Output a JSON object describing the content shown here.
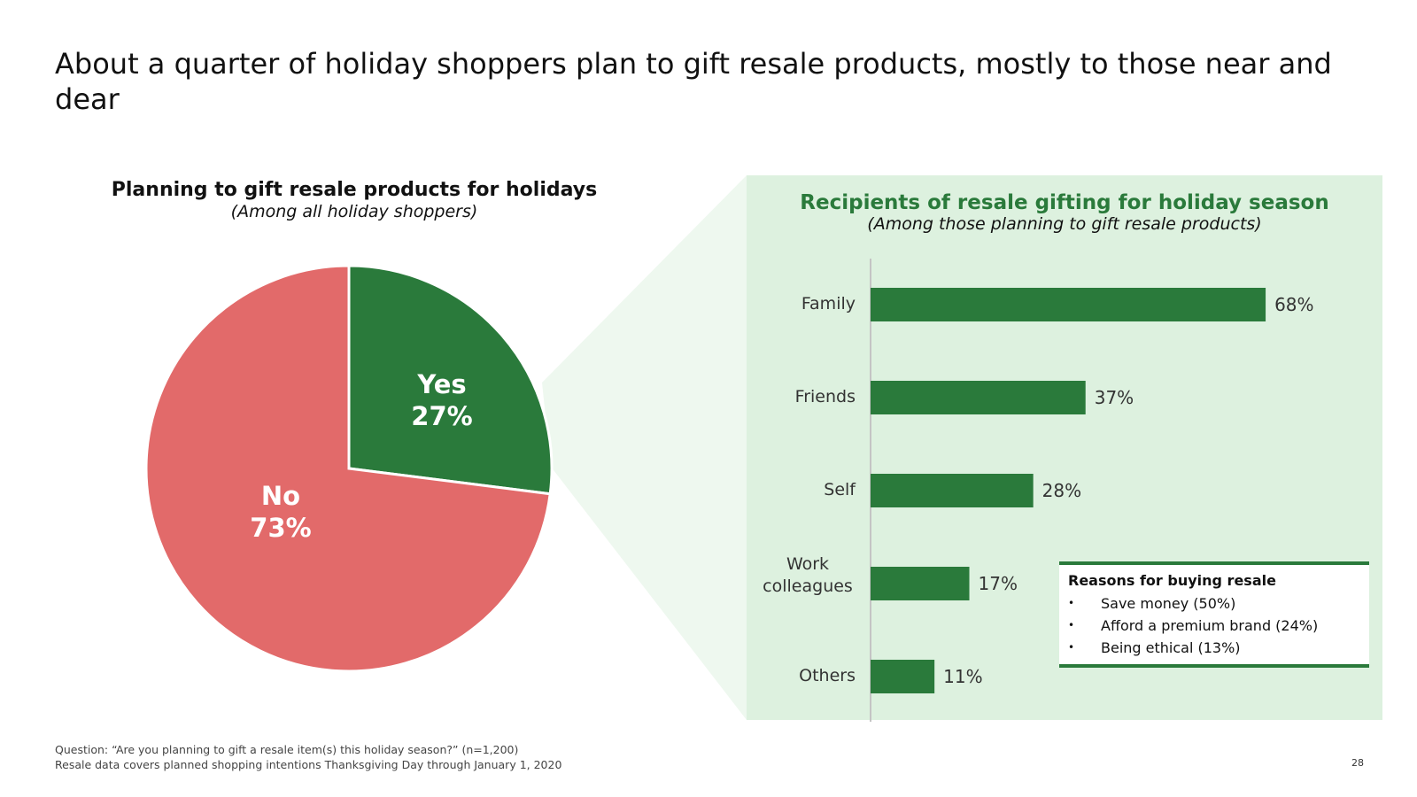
{
  "title": "About a quarter of holiday shoppers plan to gift resale products, mostly to those near and dear",
  "colors": {
    "yes": "#2a7a3b",
    "no": "#e26a6a",
    "panel": "#ddf1df",
    "wedge": "#eef8ef",
    "accent": "#2a7a3b"
  },
  "pie": {
    "title": "Planning to gift resale products for holidays",
    "subtitle": "(Among all holiday shoppers)",
    "yes_label": "Yes",
    "yes_value": "27%",
    "no_label": "No",
    "no_value": "73%"
  },
  "bars": {
    "title": "Recipients of resale gifting for holiday season",
    "subtitle": "(Among those planning to gift resale products)",
    "value_labels": [
      "68%",
      "37%",
      "28%",
      "17%",
      "11%"
    ],
    "categories": [
      "Family",
      "Friends",
      "Self",
      "Work colleagues",
      "Others"
    ]
  },
  "reasons": {
    "title": "Reasons for buying resale",
    "bullet": "•",
    "items": [
      "Save money (50%)",
      "Afford a premium brand (24%)",
      "Being ethical (13%)"
    ]
  },
  "footnotes": [
    "Question: “Are you planning to gift a resale item(s) this holiday season?” (n=1,200)",
    "Resale data covers planned shopping intentions Thanksgiving Day through January 1, 2020"
  ],
  "page_number": "28",
  "chart_data": [
    {
      "type": "pie",
      "title": "Planning to gift resale products for holidays",
      "subtitle": "(Among all holiday shoppers)",
      "categories": [
        "Yes",
        "No"
      ],
      "values": [
        27,
        73
      ],
      "unit": "%"
    },
    {
      "type": "bar",
      "orientation": "horizontal",
      "title": "Recipients of resale gifting for holiday season",
      "subtitle": "(Among those planning to gift resale products)",
      "categories": [
        "Family",
        "Friends",
        "Self",
        "Work colleagues",
        "Others"
      ],
      "values": [
        68,
        37,
        28,
        17,
        11
      ],
      "unit": "%",
      "xlim": [
        0,
        100
      ],
      "xlabel": "",
      "ylabel": "",
      "grid": false
    }
  ]
}
